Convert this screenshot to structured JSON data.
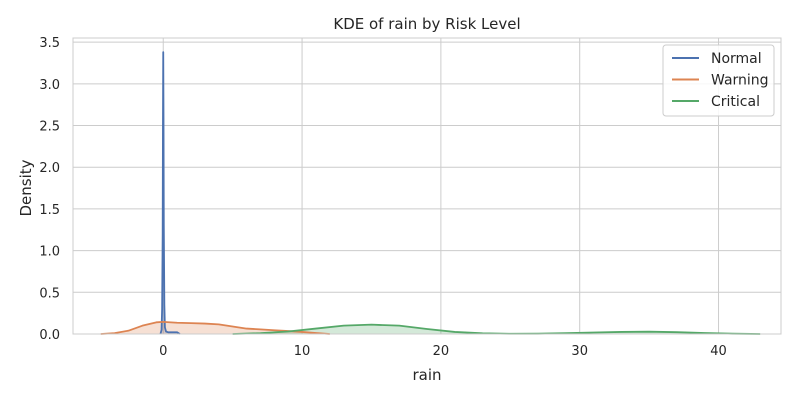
{
  "chart_data": {
    "type": "area",
    "title": "KDE of rain by Risk Level",
    "xlabel": "rain",
    "ylabel": "Density",
    "xlim": [
      -6.5,
      44.5
    ],
    "ylim": [
      0,
      3.55
    ],
    "x_ticks": [
      0,
      10,
      20,
      30,
      40
    ],
    "y_ticks": [
      0.0,
      0.5,
      1.0,
      1.5,
      2.0,
      2.5,
      3.0,
      3.5
    ],
    "x_tick_labels": [
      "0",
      "10",
      "20",
      "30",
      "40"
    ],
    "y_tick_labels": [
      "0.0",
      "0.5",
      "1.0",
      "1.5",
      "2.0",
      "2.5",
      "3.0",
      "3.5"
    ],
    "grid": true,
    "legend_position": "top-right",
    "series": [
      {
        "name": "Normal",
        "color": "#4c72b0",
        "fill_opacity": 0.25,
        "x": [
          -0.2,
          -0.12,
          -0.08,
          -0.04,
          -0.02,
          0.0,
          0.02,
          0.04,
          0.08,
          0.12,
          0.2,
          0.35,
          0.6,
          1.0,
          1.2
        ],
        "y": [
          0.0,
          0.05,
          0.3,
          1.2,
          2.5,
          3.38,
          2.6,
          1.3,
          0.35,
          0.08,
          0.03,
          0.02,
          0.02,
          0.02,
          0.0
        ]
      },
      {
        "name": "Warning",
        "color": "#dd8452",
        "fill_opacity": 0.25,
        "x": [
          -4.5,
          -3.5,
          -2.5,
          -1.5,
          -0.5,
          0.0,
          1.0,
          2.0,
          3.0,
          4.0,
          5.0,
          6.0,
          7.0,
          8.0,
          9.0,
          10.0,
          11.0,
          12.0
        ],
        "y": [
          0.0,
          0.01,
          0.04,
          0.1,
          0.14,
          0.145,
          0.135,
          0.13,
          0.125,
          0.115,
          0.09,
          0.065,
          0.055,
          0.045,
          0.035,
          0.025,
          0.012,
          0.0
        ]
      },
      {
        "name": "Critical",
        "color": "#55a868",
        "fill_opacity": 0.25,
        "x": [
          5.0,
          7.0,
          9.0,
          11.0,
          13.0,
          15.0,
          17.0,
          19.0,
          21.0,
          23.0,
          25.0,
          27.0,
          29.0,
          31.0,
          33.0,
          35.0,
          37.0,
          39.0,
          41.0,
          43.0
        ],
        "y": [
          0.0,
          0.01,
          0.03,
          0.065,
          0.1,
          0.112,
          0.1,
          0.06,
          0.025,
          0.008,
          0.003,
          0.004,
          0.01,
          0.018,
          0.025,
          0.028,
          0.022,
          0.012,
          0.004,
          0.0
        ]
      }
    ]
  }
}
